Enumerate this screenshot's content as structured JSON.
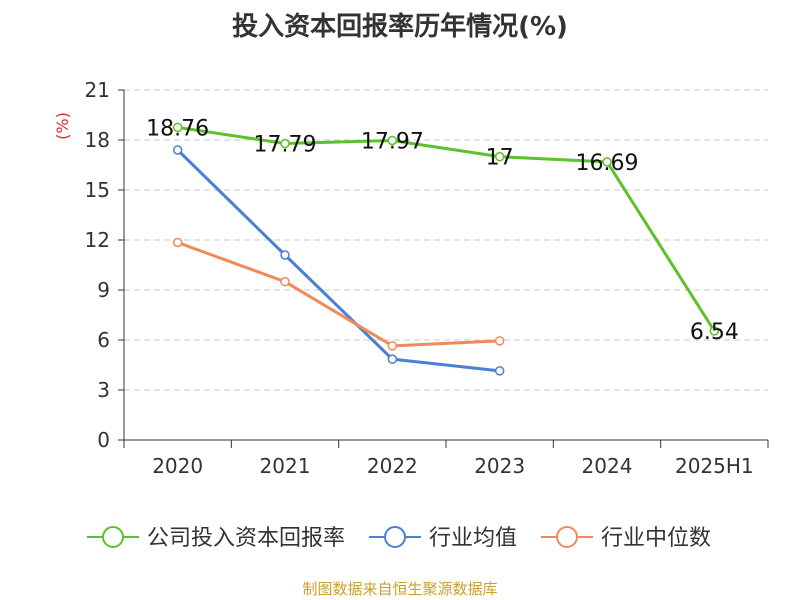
{
  "chart_data": {
    "type": "line",
    "title": "投入资本回报率历年情况(%)",
    "ylabel": "(%)",
    "xlabel": "",
    "categories": [
      "2020",
      "2021",
      "2022",
      "2023",
      "2024",
      "2025H1"
    ],
    "ylim": [
      0,
      21
    ],
    "yticks": [
      0,
      3,
      6,
      9,
      12,
      15,
      18,
      21
    ],
    "grid": true,
    "legend_position": "bottom",
    "series": [
      {
        "name": "公司投入资本回报率",
        "color": "#5dc12b",
        "values": [
          18.76,
          17.79,
          17.97,
          17,
          16.69,
          6.54
        ],
        "value_labels": [
          "18.76",
          "17.79",
          "17.97",
          "17",
          "16.69",
          "6.54"
        ]
      },
      {
        "name": "行业均值",
        "color": "#4a7fd4",
        "values": [
          17.4,
          11.1,
          4.85,
          4.15,
          null,
          null
        ]
      },
      {
        "name": "行业中位数",
        "color": "#f28a58",
        "values": [
          11.85,
          9.5,
          5.65,
          5.95,
          null,
          null
        ]
      }
    ]
  },
  "watermark": "制图数据来自恒生聚源数据库"
}
